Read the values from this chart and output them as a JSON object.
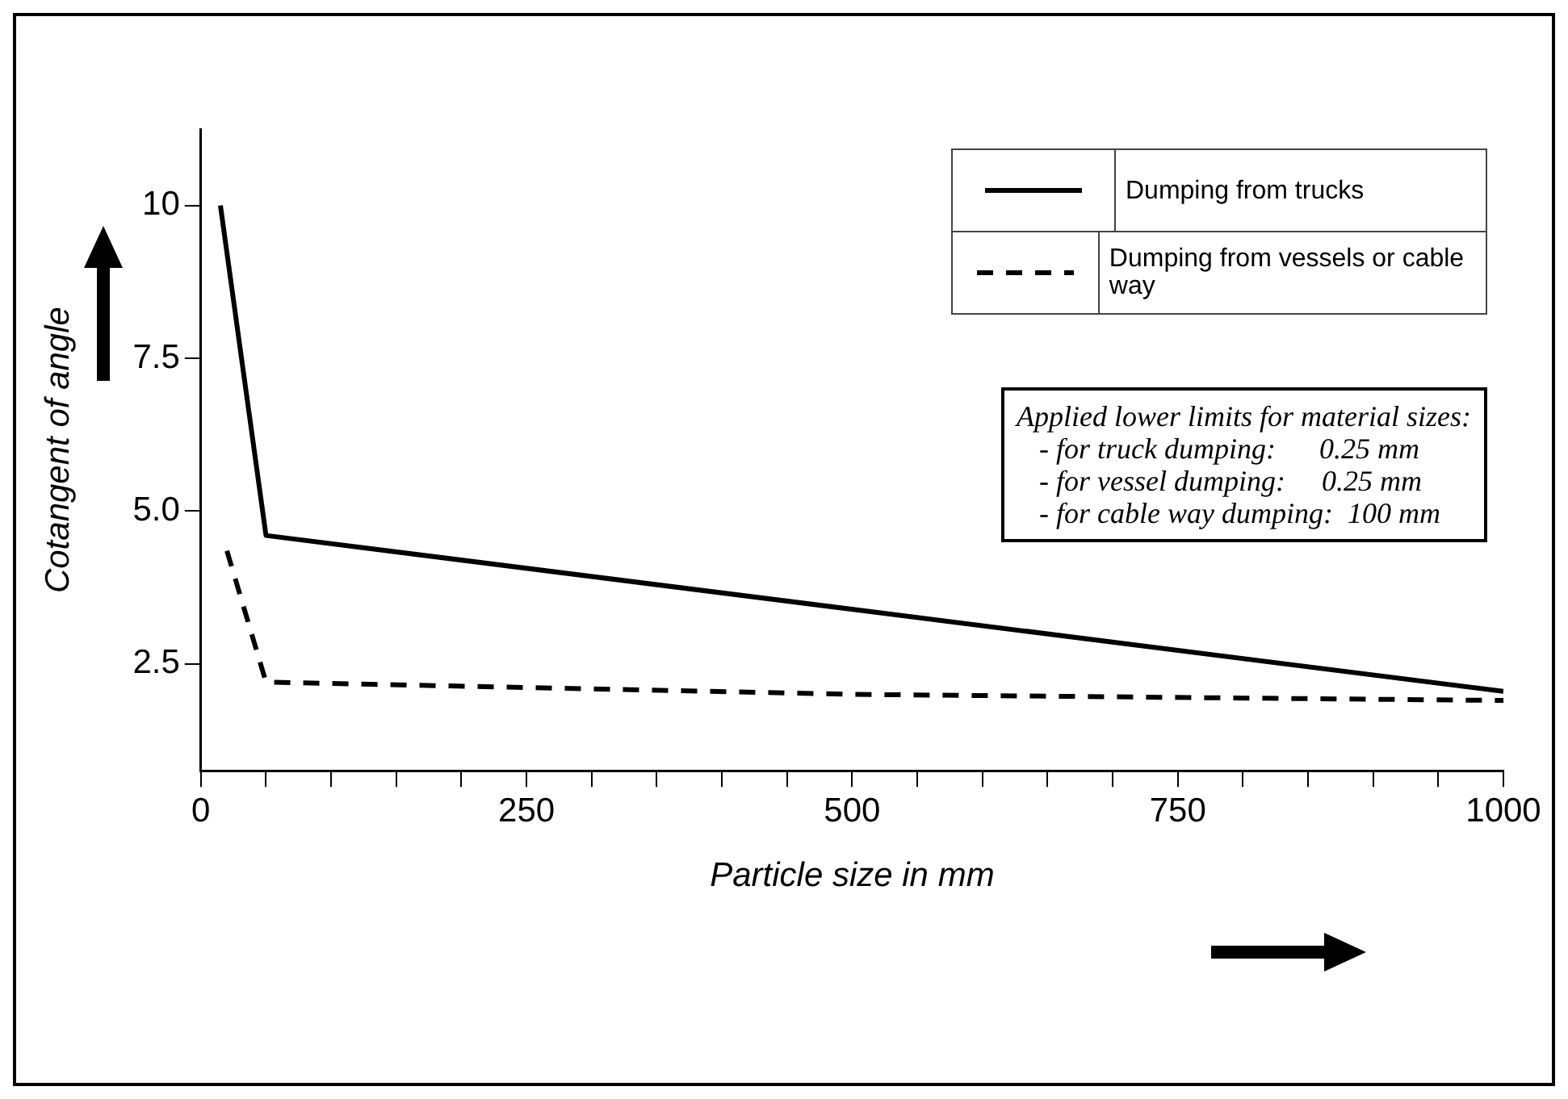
{
  "chart_data": {
    "type": "line",
    "xlabel": "Particle size in mm",
    "ylabel": "Cotangent of angle",
    "xlim": [
      0,
      1000
    ],
    "xticks": [
      0,
      {
        "value": 50,
        "label": null
      },
      {
        "value": 100,
        "label": null
      },
      {
        "value": 150,
        "label": null
      },
      {
        "value": 200,
        "label": null
      },
      250,
      {
        "value": 300,
        "label": null
      },
      {
        "value": 350,
        "label": null
      },
      {
        "value": 400,
        "label": null
      },
      {
        "value": 450,
        "label": null
      },
      500,
      {
        "value": 550,
        "label": null
      },
      {
        "value": 600,
        "label": null
      },
      {
        "value": 650,
        "label": null
      },
      {
        "value": 700,
        "label": null
      },
      750,
      {
        "value": 800,
        "label": null
      },
      {
        "value": 850,
        "label": null
      },
      {
        "value": 900,
        "label": null
      },
      {
        "value": 950,
        "label": null
      },
      1000
    ],
    "ylim": [
      0.75,
      11.25
    ],
    "yticks": [
      2.5,
      {
        "value": 5,
        "label": "5.0"
      },
      7.5,
      10
    ],
    "grid": false,
    "legend": "top right",
    "marker": "none",
    "series": [
      {
        "name": "Dumping from trucks",
        "color": "#000000",
        "line_style": "solid",
        "x": [
          15,
          50,
          1000
        ],
        "values": [
          10,
          4.6,
          2.05
        ]
      },
      {
        "name": "Dumping from vessels or cable way",
        "color": "#000000",
        "line_style": "dashed",
        "x": [
          20,
          50,
          500,
          1000
        ],
        "values": [
          4.35,
          2.2,
          2.0,
          1.9
        ]
      }
    ],
    "annotations": [
      "Applied lower limits for material sizes:",
      "- for truck dumping:      0.25 mm",
      "- for vessel dumping:     0.25 mm",
      "- for cable way dumping:  100 mm"
    ]
  }
}
